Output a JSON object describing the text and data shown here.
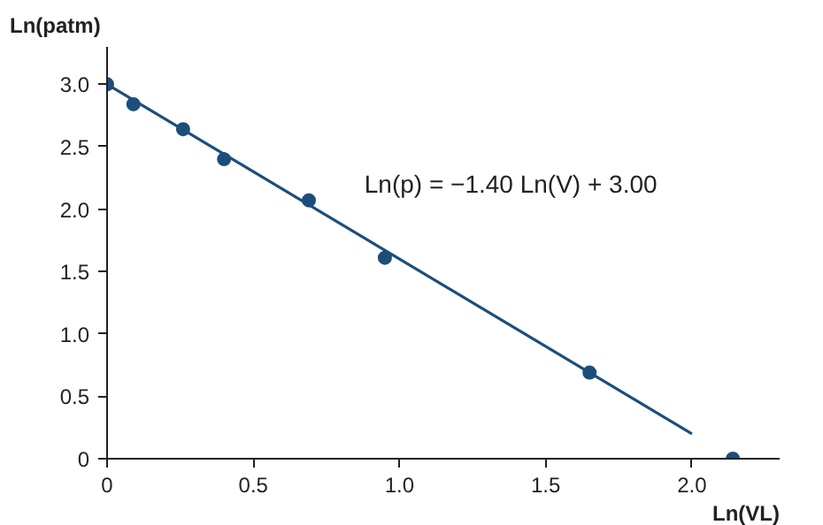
{
  "chart_data": {
    "type": "scatter",
    "xlabel": "Ln(VL)",
    "ylabel": "Ln(patm)",
    "annotations": [
      "Ln(p) = −1.40 Ln(V) + 3.00"
    ],
    "xlim": [
      0,
      2.3
    ],
    "ylim": [
      0,
      3.3
    ],
    "xticks": [
      {
        "value": 0,
        "label": "0"
      },
      0.5,
      {
        "value": 1,
        "label": "1.0"
      },
      1.5,
      {
        "value": 2,
        "label": "2.0"
      }
    ],
    "yticks": [
      {
        "value": 0,
        "label": "0"
      },
      0.5,
      {
        "value": 1,
        "label": "1.0"
      },
      1.5,
      {
        "value": 2,
        "label": "2.0"
      },
      2.5,
      {
        "value": 3,
        "label": "3.0"
      }
    ],
    "grid": false,
    "series": [
      {
        "color": "#1d4e7b",
        "marker": "circle",
        "x": [
          0,
          0.09,
          0.26,
          0.4,
          0.69,
          0.95,
          1.65,
          2.14
        ],
        "values": [
          3.0,
          2.84,
          2.64,
          2.4,
          2.07,
          1.61,
          0.69,
          0.0
        ]
      },
      {
        "type": "line",
        "color": "#1d4e7b",
        "line_style": "solid",
        "x": [
          0,
          2.0
        ],
        "values": [
          3.0,
          0.2
        ]
      }
    ]
  }
}
